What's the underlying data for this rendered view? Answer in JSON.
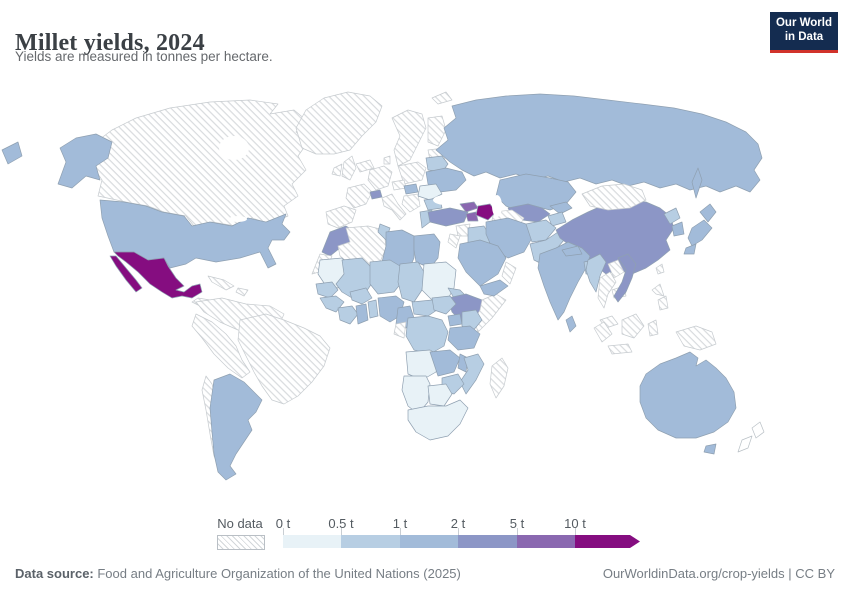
{
  "header": {
    "title": "Millet yields, 2024",
    "subtitle": "Yields are measured in tonnes per hectare."
  },
  "logo": {
    "line1": "Our World",
    "line2": "in Data"
  },
  "legend": {
    "no_data_label": "No data",
    "ticks": [
      "0 t",
      "0.5 t",
      "1 t",
      "2 t",
      "5 t",
      "10 t"
    ]
  },
  "footer": {
    "source_label": "Data source:",
    "source_text": " Food and Agriculture Organization of the United Nations (2025)",
    "right_text": "OurWorldinData.org/crop-yields | CC BY"
  },
  "colors": {
    "logo_bg": "#142c50",
    "logo_red": "#d1322a",
    "country_stroke": "#8fa0b1",
    "nodata_stroke": "#c6cbcf",
    "plain_stroke": "#b9c0c6"
  },
  "chart_data": {
    "type": "choropleth",
    "title": "Millet yields, 2024",
    "unit": "tonnes per hectare",
    "year": 2024,
    "legend_position": "bottom",
    "bin_edges_labels": [
      "0 t",
      "0.5 t",
      "1 t",
      "2 t",
      "5 t",
      "10 t"
    ],
    "palette": {
      "0-0.5": "#e8f2f7",
      "0.5-1": "#b7cee3",
      "1-2": "#a2bbd9",
      "2-5": "#8c96c6",
      "5-10": "#8a68b0",
      "10+": "#850d80",
      "no-data": "hatch",
      "none": "#ffffff"
    },
    "entities": {
      "United States": "1-2",
      "Canada": "no-data",
      "Greenland": "no-data",
      "Iceland": "no-data",
      "Mexico": "10+",
      "Central America": "no-data",
      "Cuba": "no-data",
      "Hispaniola": "no-data",
      "Northern South America": "no-data",
      "Brazil": "no-data",
      "Peru": "no-data",
      "Chile": "no-data",
      "Argentina": "1-2",
      "Morocco": "2-5",
      "Western Sahara": "no-data",
      "Algeria": "no-data",
      "Tunisia": "0.5-1",
      "Libya": "1-2",
      "Egypt": "1-2",
      "Mauritania": "0-0.5",
      "Mali": "0.5-1",
      "Niger": "0.5-1",
      "Chad": "0.5-1",
      "Sudan": "0-0.5",
      "Eritrea": "0.5-1",
      "Ethiopia": "2-5",
      "Somalia": "no-data",
      "Senegal": "0.5-1",
      "Guinea": "0.5-1",
      "Cote d'Ivoire": "0.5-1",
      "Ghana": "1-2",
      "Benin": "0.5-1",
      "Burkina Faso": "0.5-1",
      "Nigeria": "1-2",
      "Cameroon": "1-2",
      "Central African Republic": "0.5-1",
      "South Sudan": "0.5-1",
      "Uganda": "1-2",
      "Kenya": "0.5-1",
      "Tanzania": "1-2",
      "Democratic Republic of Congo": "0.5-1",
      "Congo": "no-data",
      "Angola": "0-0.5",
      "Zambia": "1-2",
      "Malawi": "1-2",
      "Mozambique": "0.5-1",
      "Zimbabwe": "0.5-1",
      "Namibia": "0-0.5",
      "Botswana": "0-0.5",
      "South Africa": "0-0.5",
      "Madagascar": "no-data",
      "Spain": "no-data",
      "France": "no-data",
      "United Kingdom": "no-data",
      "Ireland": "no-data",
      "Germany": "no-data",
      "Italy": "no-data",
      "Norway": "no-data",
      "Finland": "no-data",
      "Denmark": "no-data",
      "Latvia": "no-data",
      "Lithuania": "1-2",
      "Poland": "no-data",
      "Austria": "no-data",
      "Balkans": "no-data",
      "Switzerland": "2-5",
      "Hungary": "1-2",
      "Belarus": "0.5-1",
      "Ukraine": "1-2",
      "Romania": "0-0.5",
      "Bulgaria": "0.5-1",
      "Greece": "0.5-1",
      "Russia": "1-2",
      "Kazakhstan": "1-2",
      "Uzbekistan": "2-5",
      "Turkmenistan": "no-data",
      "Kyrgyzstan": "1-2",
      "Tajikistan": "0.5-1",
      "Georgia": "5-10",
      "Armenia": "5-10",
      "Azerbaijan": "10+",
      "Turkey": "2-5",
      "Syria": "no-data",
      "Jordan": "no-data",
      "Iraq": "0.5-1",
      "Saudi Arabia": "1-2",
      "Yemen": "1-2",
      "Oman": "no-data",
      "Iran": "1-2",
      "Afghanistan": "0.5-1",
      "Pakistan": "0.5-1",
      "India": "1-2",
      "Nepal": "1-2",
      "Bangladesh": "0.5-1",
      "Sri Lanka": "1-2",
      "China": "2-5",
      "Mongolia": "no-data",
      "North Korea": "0.5-1",
      "South Korea": "1-2",
      "Japan": "1-2",
      "Taiwan": "no-data",
      "Myanmar": "0.5-1",
      "Thailand": "no-data",
      "Laos": "no-data",
      "Cambodia": "no-data",
      "Vietnam": "2-5",
      "Malaysia": "no-data",
      "Philippines": "no-data",
      "Indonesia": "no-data",
      "Papua New Guinea": "no-data",
      "Australia": "1-2",
      "New Zealand": "none"
    }
  }
}
